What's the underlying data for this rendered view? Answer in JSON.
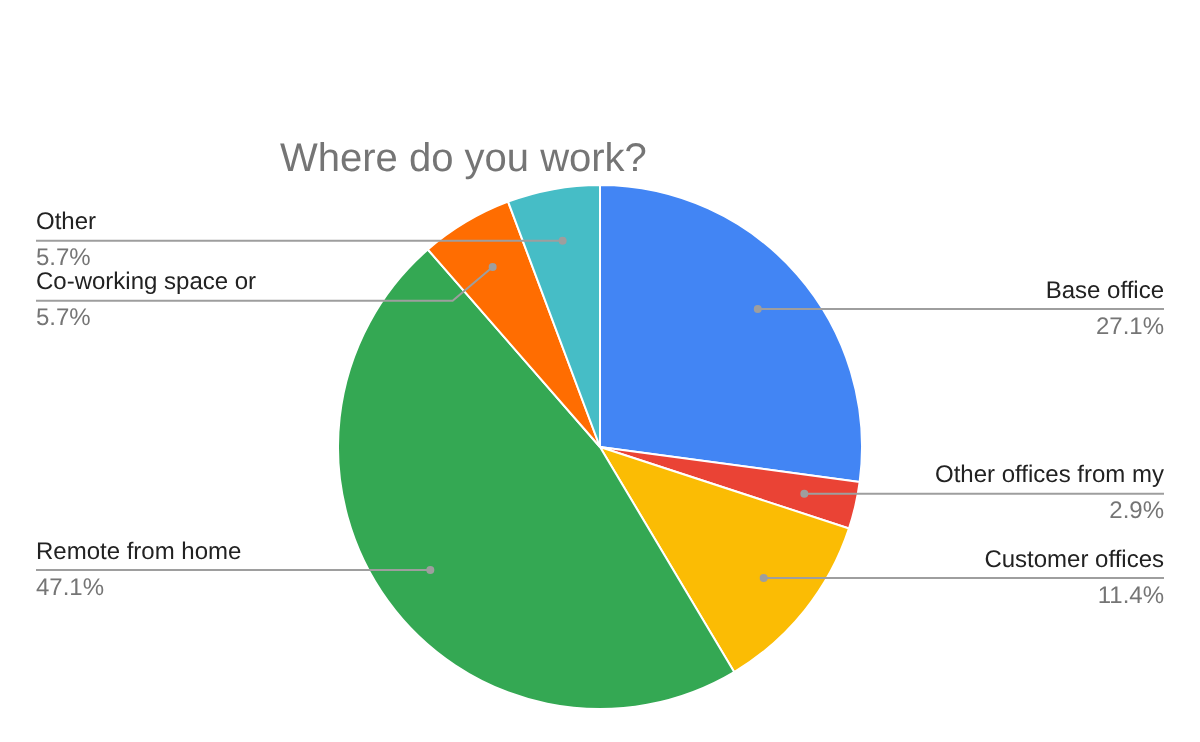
{
  "chart_data": {
    "type": "pie",
    "title": "Where do you work?",
    "categories": [
      "Base office",
      "Other offices from my",
      "Customer offices",
      "Remote from home",
      "Co-working space or",
      "Other"
    ],
    "values": [
      27.1,
      2.9,
      11.4,
      47.1,
      5.7,
      5.7
    ],
    "colors": [
      "#4285f4",
      "#ea4335",
      "#fbbc04",
      "#34a853",
      "#ff6d01",
      "#46bdc6"
    ],
    "value_labels": [
      "27.1%",
      "2.9%",
      "11.4%",
      "47.1%",
      "5.7%",
      "5.7%"
    ]
  }
}
